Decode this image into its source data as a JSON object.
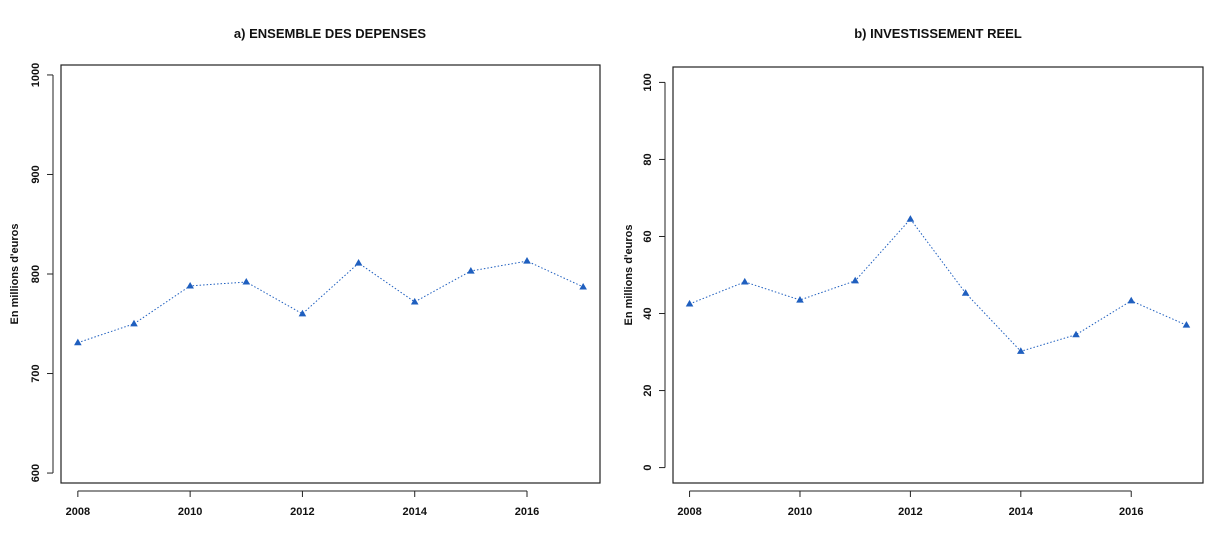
{
  "chart_data": [
    {
      "type": "line",
      "title": "a) ENSEMBLE DES DEPENSES",
      "ylabel": "En millions d'euros",
      "xlabel": "",
      "x": [
        2008,
        2009,
        2010,
        2011,
        2012,
        2013,
        2014,
        2015,
        2016,
        2017
      ],
      "x_ticks": [
        "2008",
        "2010",
        "2012",
        "2014",
        "2016"
      ],
      "y_ticks": [
        "600",
        "700",
        "800",
        "900",
        "1000"
      ],
      "ylim": [
        590,
        1010
      ],
      "xlim": [
        2007.7,
        2017.3
      ],
      "series": [
        {
          "values": [
            731,
            750,
            788,
            792,
            760,
            811,
            772,
            803,
            813,
            787
          ],
          "color": "#1f5fbf"
        }
      ]
    },
    {
      "type": "line",
      "title": "b) INVESTISSEMENT REEL",
      "ylabel": "En millions d'euros",
      "xlabel": "",
      "x": [
        2008,
        2009,
        2010,
        2011,
        2012,
        2013,
        2014,
        2015,
        2016,
        2017
      ],
      "x_ticks": [
        "2008",
        "2010",
        "2012",
        "2014",
        "2016"
      ],
      "y_ticks": [
        "0",
        "20",
        "40",
        "60",
        "80",
        "100"
      ],
      "ylim": [
        -4,
        104
      ],
      "xlim": [
        2007.7,
        2017.3
      ],
      "series": [
        {
          "values": [
            42.5,
            48.2,
            43.5,
            48.5,
            64.5,
            45.3,
            30.2,
            34.5,
            43.3,
            37.0
          ],
          "color": "#1f5fbf"
        }
      ]
    }
  ]
}
